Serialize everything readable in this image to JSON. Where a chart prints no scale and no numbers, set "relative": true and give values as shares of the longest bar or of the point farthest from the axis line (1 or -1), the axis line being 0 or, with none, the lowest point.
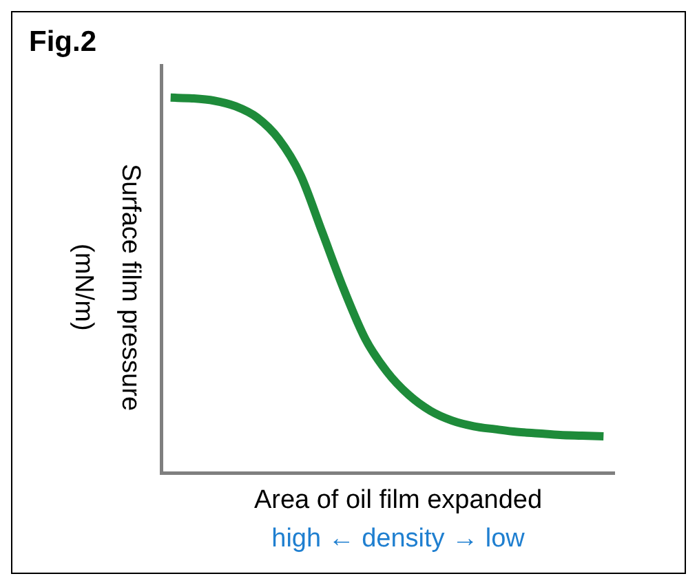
{
  "chart_data": {
    "type": "line",
    "title": "Fig.2",
    "xlabel": "Area of oil film expanded",
    "ylabel": "Surface film pressure (mN/m)",
    "annotations": [
      "high ← density → low"
    ],
    "relative": true,
    "legend": false,
    "grid": false,
    "marker": "none",
    "line_style": "solid",
    "categories": [
      null,
      null,
      null,
      null,
      null,
      null,
      null,
      null,
      null,
      null,
      null,
      null,
      null,
      null,
      null,
      null,
      null,
      null,
      null,
      null,
      null
    ],
    "series": [
      {
        "color": "#1e8b3a",
        "values": [
          1.0,
          0.998,
          0.992,
          0.977,
          0.947,
          0.89,
          0.795,
          0.644,
          0.492,
          0.36,
          0.273,
          0.212,
          0.17,
          0.144,
          0.129,
          0.121,
          0.114,
          0.11,
          0.106,
          0.104,
          0.102
        ]
      }
    ]
  }
}
